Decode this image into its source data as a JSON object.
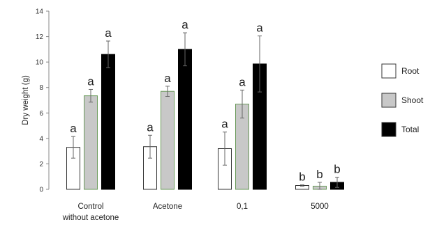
{
  "chart_data": {
    "type": "bar",
    "ylabel": "Dry weight (g)",
    "ylim": [
      0,
      14
    ],
    "yticks": [
      "0",
      "2",
      "4",
      "6",
      "8",
      "10",
      "12",
      "14"
    ],
    "categories": [
      [
        "Control",
        "without acetone"
      ],
      [
        "Acetone"
      ],
      [
        "0,1"
      ],
      [
        "5000"
      ]
    ],
    "series": [
      {
        "name": "Root",
        "color": "#ffffff",
        "stroke": "#333333",
        "values": [
          3.3,
          3.35,
          3.2,
          0.3
        ],
        "errors": [
          0.85,
          0.9,
          1.3,
          0.05
        ],
        "labels": [
          "a",
          "a",
          "a",
          "b"
        ]
      },
      {
        "name": "Shoot",
        "color": "#c8c8c8",
        "stroke": "#6a9a5a",
        "values": [
          7.35,
          7.7,
          6.7,
          0.25
        ],
        "errors": [
          0.5,
          0.4,
          1.1,
          0.3
        ],
        "labels": [
          "a",
          "a",
          "a",
          "b"
        ]
      },
      {
        "name": "Total",
        "color": "#000000",
        "stroke": "#000000",
        "values": [
          10.6,
          11.0,
          9.85,
          0.55
        ],
        "errors": [
          1.05,
          1.3,
          2.2,
          0.4
        ],
        "labels": [
          "a",
          "a",
          "a",
          "b"
        ]
      }
    ],
    "legend_position": "right",
    "grid": false
  }
}
